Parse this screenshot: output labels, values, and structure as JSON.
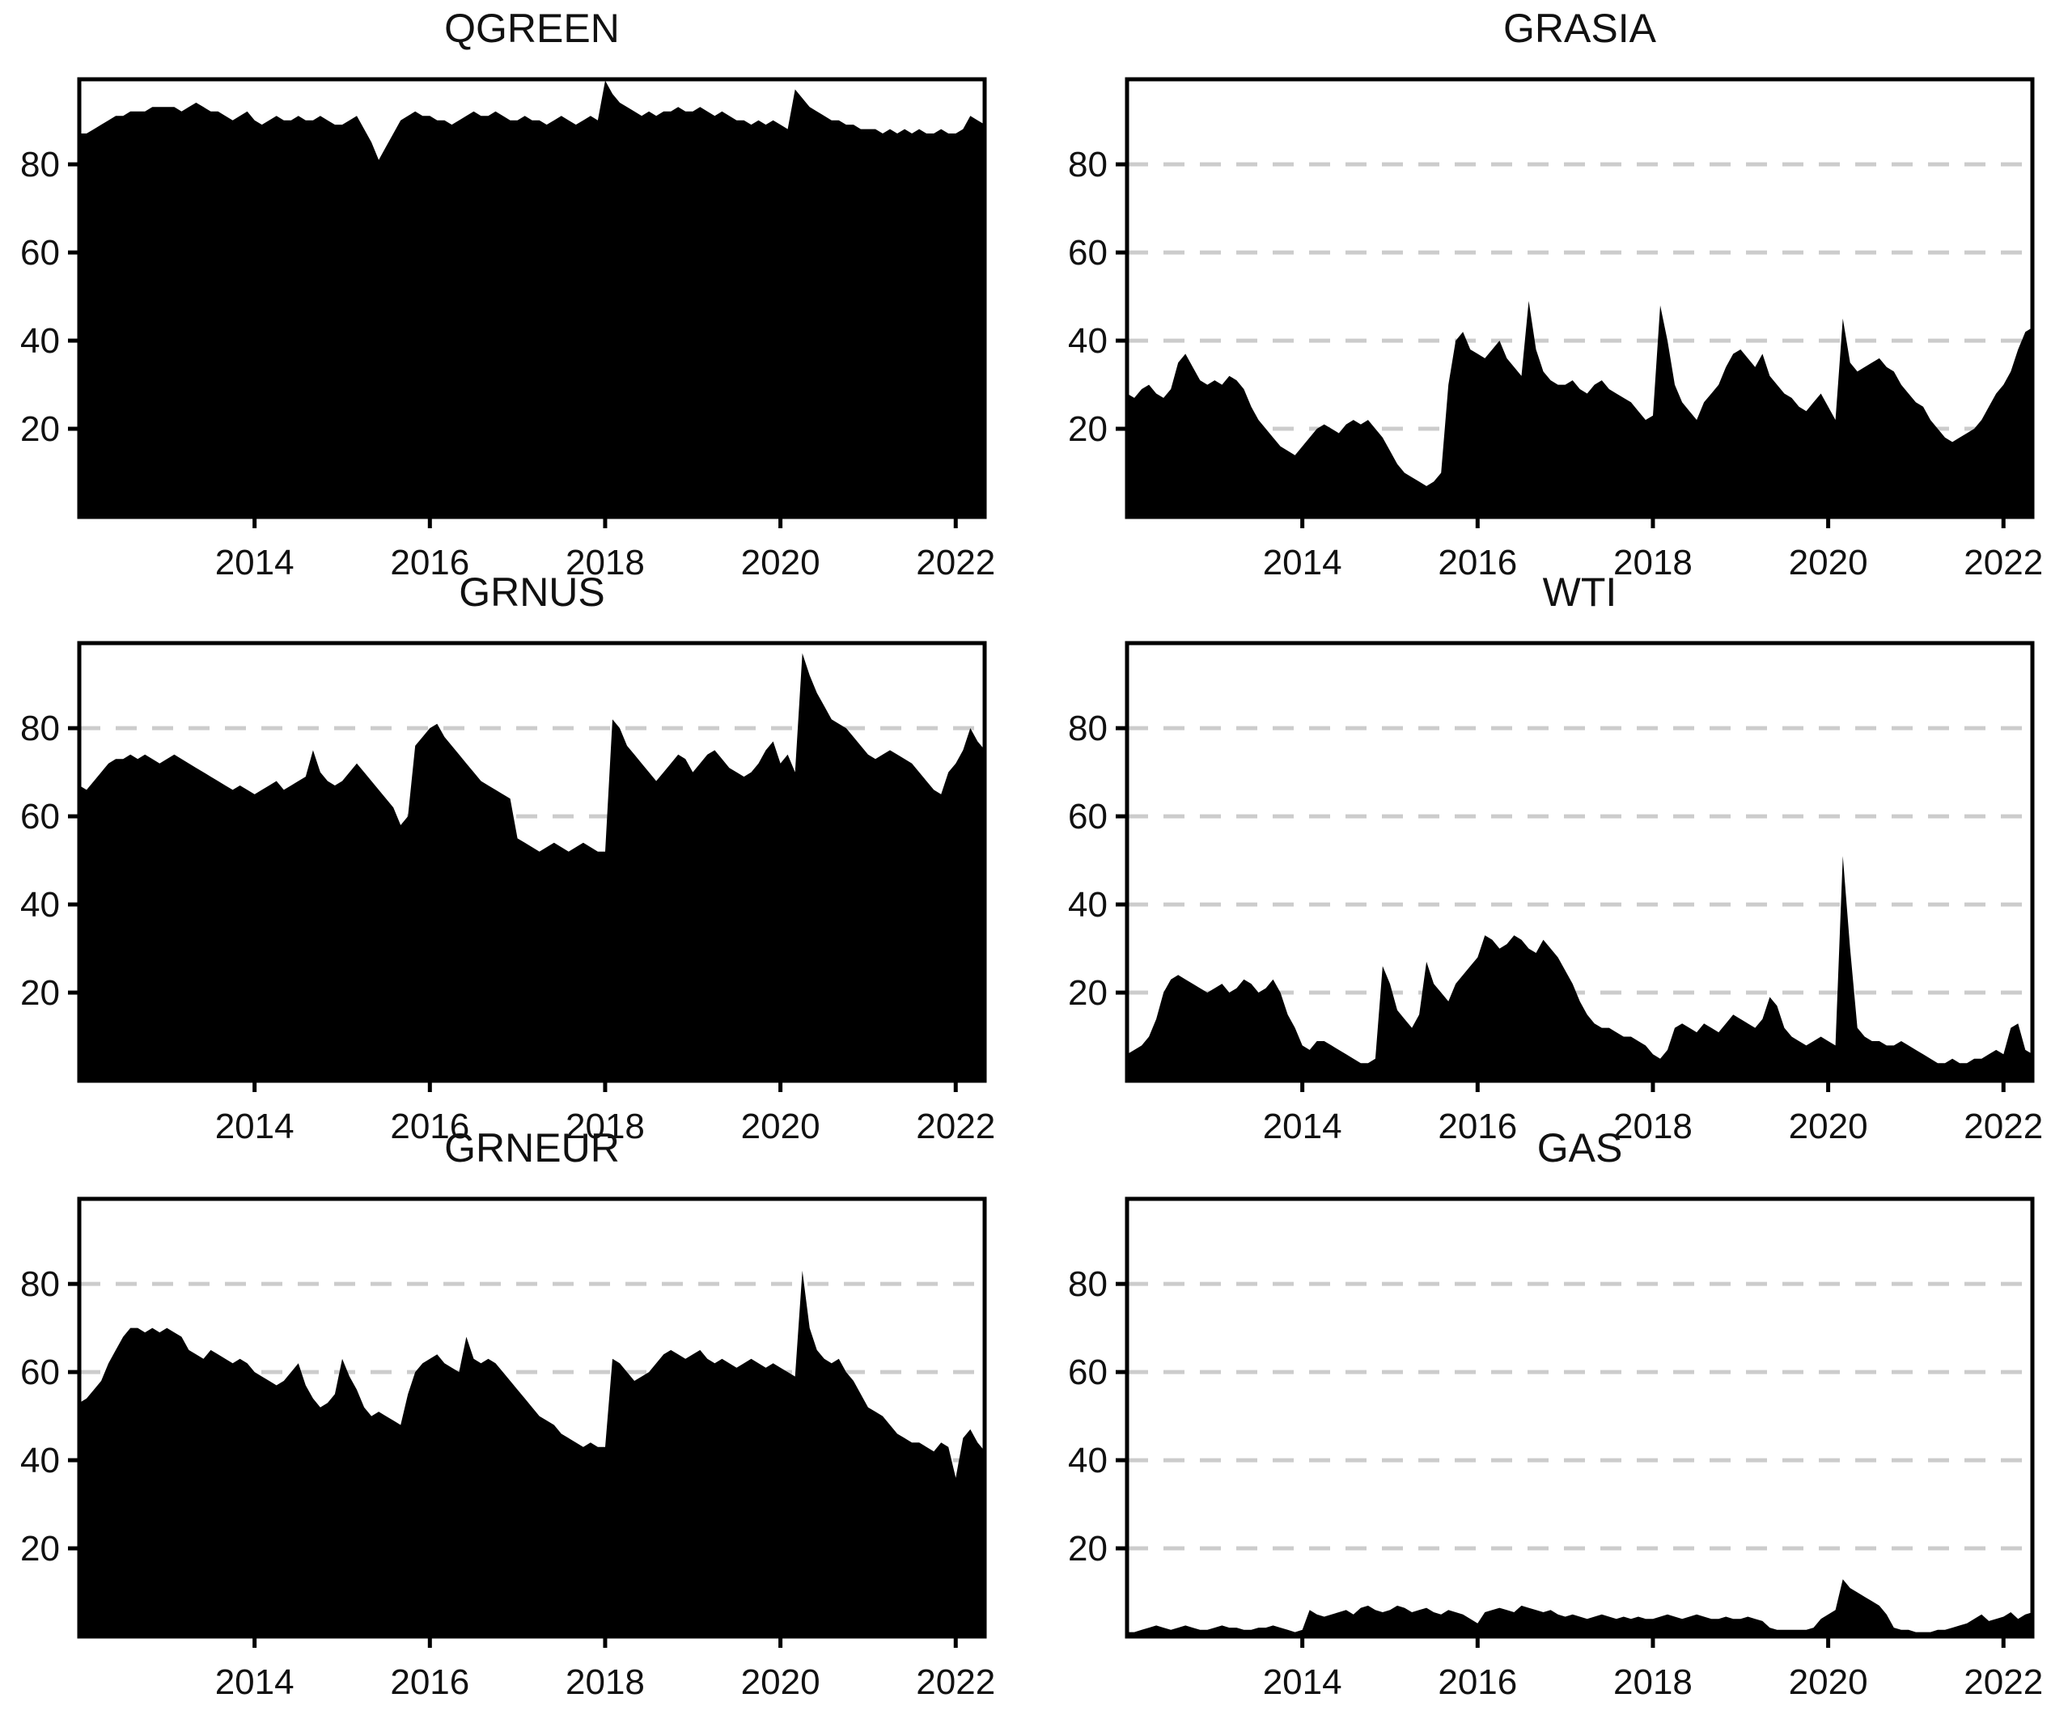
{
  "figure": {
    "background": "#ffffff",
    "area_fill_color": "#000000",
    "grid_color": "#cccccc",
    "frame_color": "#000000",
    "tick_label_color": "#111111"
  },
  "chart_data": [
    {
      "type": "area",
      "title": "QGREEN",
      "xlim": [
        2012.0,
        2022.33
      ],
      "ylim": [
        0,
        99.3
      ],
      "x_ticks": [
        2014,
        2016,
        2018,
        2020,
        2022
      ],
      "y_ticks": [
        20,
        40,
        60,
        80
      ],
      "grid": true,
      "x_start": 2012.0,
      "x_step": 0.0833333,
      "values": [
        87,
        87,
        88,
        89,
        90,
        91,
        91,
        92,
        92,
        92,
        93,
        93,
        93,
        93,
        92,
        93,
        94,
        93,
        92,
        92,
        91,
        90,
        91,
        92,
        90,
        89,
        90,
        91,
        90,
        90,
        91,
        90,
        90,
        91,
        90,
        89,
        89,
        90,
        91,
        88,
        85,
        81,
        84,
        87,
        90,
        91,
        92,
        91,
        91,
        90,
        90,
        89,
        90,
        91,
        92,
        91,
        91,
        92,
        91,
        90,
        90,
        91,
        90,
        90,
        89,
        90,
        91,
        90,
        89,
        90,
        91,
        90,
        99,
        96,
        94,
        93,
        92,
        91,
        92,
        91,
        92,
        92,
        93,
        92,
        92,
        93,
        92,
        91,
        92,
        91,
        90,
        90,
        89,
        90,
        89,
        90,
        89,
        88,
        97,
        95,
        93,
        92,
        91,
        90,
        90,
        89,
        89,
        88,
        88,
        88,
        87,
        88,
        87,
        88,
        87,
        88,
        87,
        87,
        88,
        87,
        87,
        88,
        91,
        90,
        89
      ]
    },
    {
      "type": "area",
      "title": "GRASIA",
      "xlim": [
        2012.0,
        2022.33
      ],
      "ylim": [
        0,
        99.3
      ],
      "x_ticks": [
        2014,
        2016,
        2018,
        2020,
        2022
      ],
      "y_ticks": [
        20,
        40,
        60,
        80
      ],
      "grid": true,
      "x_start": 2012.0,
      "x_step": 0.0833333,
      "values": [
        28,
        27,
        29,
        30,
        28,
        27,
        29,
        35,
        37,
        34,
        31,
        30,
        31,
        30,
        32,
        31,
        29,
        25,
        22,
        20,
        18,
        16,
        15,
        14,
        16,
        18,
        20,
        21,
        20,
        19,
        21,
        22,
        21,
        22,
        20,
        18,
        15,
        12,
        10,
        9,
        8,
        7,
        8,
        10,
        30,
        40,
        42,
        38,
        37,
        36,
        38,
        40,
        36,
        34,
        32,
        49,
        38,
        33,
        31,
        30,
        30,
        31,
        29,
        28,
        30,
        31,
        29,
        28,
        27,
        26,
        24,
        22,
        23,
        48,
        40,
        30,
        26,
        24,
        22,
        26,
        28,
        30,
        34,
        37,
        38,
        36,
        34,
        37,
        32,
        30,
        28,
        27,
        25,
        24,
        26,
        28,
        25,
        22,
        45,
        35,
        33,
        34,
        35,
        36,
        34,
        33,
        30,
        28,
        26,
        25,
        22,
        20,
        18,
        17,
        18,
        19,
        20,
        22,
        25,
        28,
        30,
        33,
        38,
        42,
        43
      ]
    },
    {
      "type": "area",
      "title": "GRNUS",
      "xlim": [
        2012.0,
        2022.33
      ],
      "ylim": [
        0,
        99.3
      ],
      "x_ticks": [
        2014,
        2016,
        2018,
        2020,
        2022
      ],
      "y_ticks": [
        20,
        40,
        60,
        80
      ],
      "grid": true,
      "x_start": 2012.0,
      "x_step": 0.0833333,
      "values": [
        67,
        66,
        68,
        70,
        72,
        73,
        73,
        74,
        73,
        74,
        73,
        72,
        73,
        74,
        73,
        72,
        71,
        70,
        69,
        68,
        67,
        66,
        67,
        66,
        65,
        66,
        67,
        68,
        66,
        67,
        68,
        69,
        75,
        70,
        68,
        67,
        68,
        70,
        72,
        70,
        68,
        66,
        64,
        62,
        58,
        60,
        76,
        78,
        80,
        81,
        78,
        76,
        74,
        72,
        70,
        68,
        67,
        66,
        65,
        64,
        55,
        54,
        53,
        52,
        53,
        54,
        53,
        52,
        53,
        54,
        53,
        52,
        52,
        82,
        80,
        76,
        74,
        72,
        70,
        68,
        70,
        72,
        74,
        73,
        70,
        72,
        74,
        75,
        73,
        71,
        70,
        69,
        70,
        72,
        75,
        77,
        72,
        74,
        70,
        97,
        92,
        88,
        85,
        82,
        81,
        80,
        78,
        76,
        74,
        73,
        74,
        75,
        74,
        73,
        72,
        70,
        68,
        66,
        65,
        70,
        72,
        75,
        80,
        77,
        75
      ]
    },
    {
      "type": "area",
      "title": "WTI",
      "xlim": [
        2012.0,
        2022.33
      ],
      "ylim": [
        0,
        99.3
      ],
      "x_ticks": [
        2014,
        2016,
        2018,
        2020,
        2022
      ],
      "y_ticks": [
        20,
        40,
        60,
        80
      ],
      "grid": true,
      "x_start": 2012.0,
      "x_step": 0.0833333,
      "values": [
        6,
        7,
        8,
        10,
        14,
        20,
        23,
        24,
        23,
        22,
        21,
        20,
        21,
        22,
        20,
        21,
        23,
        22,
        20,
        21,
        23,
        20,
        15,
        12,
        8,
        7,
        9,
        9,
        8,
        7,
        6,
        5,
        4,
        4,
        5,
        26,
        22,
        16,
        14,
        12,
        15,
        27,
        22,
        20,
        18,
        22,
        24,
        26,
        28,
        33,
        32,
        30,
        31,
        33,
        32,
        30,
        29,
        32,
        30,
        28,
        25,
        22,
        18,
        15,
        13,
        12,
        12,
        11,
        10,
        10,
        9,
        8,
        6,
        5,
        7,
        12,
        13,
        12,
        11,
        13,
        12,
        11,
        13,
        15,
        14,
        13,
        12,
        14,
        19,
        17,
        12,
        10,
        9,
        8,
        9,
        10,
        9,
        8,
        51,
        30,
        12,
        10,
        9,
        9,
        8,
        8,
        9,
        8,
        7,
        6,
        5,
        4,
        4,
        5,
        4,
        4,
        5,
        5,
        6,
        7,
        6,
        12,
        13,
        7,
        6
      ]
    },
    {
      "type": "area",
      "title": "GRNEUR",
      "xlim": [
        2012.0,
        2022.33
      ],
      "ylim": [
        0,
        99.3
      ],
      "x_ticks": [
        2014,
        2016,
        2018,
        2020,
        2022
      ],
      "y_ticks": [
        20,
        40,
        60,
        80
      ],
      "grid": true,
      "x_start": 2012.0,
      "x_step": 0.0833333,
      "values": [
        53,
        54,
        56,
        58,
        62,
        65,
        68,
        70,
        70,
        69,
        70,
        69,
        70,
        69,
        68,
        65,
        64,
        63,
        65,
        64,
        63,
        62,
        63,
        62,
        60,
        59,
        58,
        57,
        58,
        60,
        62,
        57,
        54,
        52,
        53,
        55,
        63,
        59,
        56,
        52,
        50,
        51,
        50,
        49,
        48,
        55,
        60,
        62,
        63,
        64,
        62,
        61,
        60,
        68,
        63,
        62,
        63,
        62,
        60,
        58,
        56,
        54,
        52,
        50,
        49,
        48,
        46,
        45,
        44,
        43,
        44,
        43,
        43,
        63,
        62,
        60,
        58,
        59,
        60,
        62,
        64,
        65,
        64,
        63,
        64,
        65,
        63,
        62,
        63,
        62,
        61,
        62,
        63,
        62,
        61,
        62,
        61,
        60,
        59,
        83,
        70,
        65,
        63,
        62,
        63,
        60,
        58,
        55,
        52,
        51,
        50,
        48,
        46,
        45,
        44,
        44,
        43,
        42,
        44,
        43,
        36,
        45,
        47,
        44,
        42
      ]
    },
    {
      "type": "area",
      "title": "GAS",
      "xlim": [
        2012.0,
        2022.33
      ],
      "ylim": [
        0,
        99.3
      ],
      "x_ticks": [
        2014,
        2016,
        2018,
        2020,
        2022
      ],
      "y_ticks": [
        20,
        40,
        60,
        80
      ],
      "grid": true,
      "x_start": 2012.0,
      "x_step": 0.0833333,
      "values": [
        1,
        1,
        1.5,
        2,
        2.5,
        2,
        1.5,
        2,
        2.5,
        2,
        1.5,
        1.5,
        2,
        2.5,
        2,
        2,
        1.5,
        1.5,
        2,
        2,
        2.5,
        2,
        1.5,
        1,
        1.5,
        6,
        5,
        4.5,
        5,
        5.5,
        6,
        5,
        6.5,
        7,
        6,
        5.5,
        6,
        7,
        6.5,
        5.5,
        6,
        6.5,
        5.5,
        5,
        6,
        5.5,
        5,
        4,
        3,
        5.5,
        6,
        6.5,
        6,
        5.5,
        7,
        6.5,
        6,
        5.5,
        6,
        5,
        4.5,
        5,
        4.5,
        4,
        4.5,
        5,
        4.5,
        4,
        4.5,
        4,
        4.5,
        4,
        4,
        4.5,
        5,
        4.5,
        4,
        4.5,
        5,
        4.5,
        4,
        4,
        4.5,
        4,
        4,
        4.5,
        4,
        3.5,
        2,
        1.5,
        1.5,
        1.5,
        1.5,
        1.5,
        2,
        4,
        5,
        6,
        13,
        11,
        10,
        9,
        8,
        7,
        5,
        2,
        1.5,
        1.5,
        1,
        1,
        1,
        1.5,
        1.5,
        2,
        2.5,
        3,
        4,
        5,
        3.5,
        4,
        4.5,
        5.5,
        4,
        5,
        5.5
      ]
    }
  ]
}
